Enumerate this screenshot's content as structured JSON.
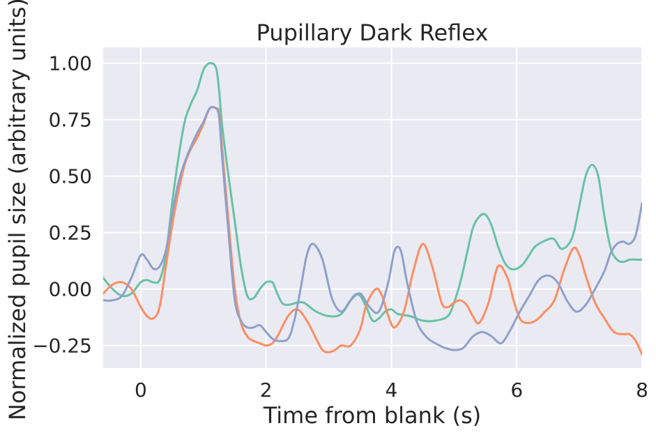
{
  "chart_data": {
    "type": "line",
    "title": "Pupillary Dark Reflex",
    "xlabel": "Time from blank (s)",
    "ylabel": "Normalized pupil size (arbitrary units)",
    "xlim": [
      -0.6,
      8.0
    ],
    "ylim": [
      -0.35,
      1.07
    ],
    "xticks": [
      0,
      2,
      4,
      6,
      8
    ],
    "xtick_labels": [
      "0",
      "2",
      "4",
      "6",
      "8"
    ],
    "yticks": [
      -0.25,
      0.0,
      0.25,
      0.5,
      0.75,
      1.0
    ],
    "ytick_labels": [
      "−0.25",
      "0.00",
      "0.25",
      "0.50",
      "0.75",
      "1.00"
    ],
    "grid": true,
    "background": "#eaeaf2",
    "series": [
      {
        "color": "#66c2a5",
        "x": [
          -0.6,
          -0.45,
          -0.3,
          -0.15,
          0.0,
          0.1,
          0.2,
          0.3,
          0.4,
          0.5,
          0.6,
          0.7,
          0.8,
          0.9,
          1.0,
          1.1,
          1.2,
          1.25,
          1.3,
          1.4,
          1.5,
          1.6,
          1.7,
          1.8,
          1.9,
          2.0,
          2.1,
          2.15,
          2.25,
          2.35,
          2.5,
          2.6,
          2.7,
          2.8,
          3.0,
          3.2,
          3.4,
          3.5,
          3.6,
          3.7,
          3.8,
          3.9,
          4.0,
          4.1,
          4.3,
          4.5,
          4.7,
          4.9,
          5.0,
          5.1,
          5.2,
          5.3,
          5.4,
          5.5,
          5.6,
          5.7,
          5.8,
          5.9,
          6.0,
          6.1,
          6.2,
          6.3,
          6.5,
          6.6,
          6.7,
          6.8,
          6.9,
          7.0,
          7.1,
          7.2,
          7.3,
          7.4,
          7.5,
          7.6,
          7.7,
          7.8,
          7.9,
          8.0
        ],
        "y": [
          0.05,
          0.0,
          -0.03,
          -0.02,
          0.03,
          0.04,
          0.03,
          0.04,
          0.15,
          0.38,
          0.58,
          0.74,
          0.82,
          0.88,
          0.97,
          1.0,
          0.98,
          0.88,
          0.72,
          0.5,
          0.3,
          0.1,
          -0.03,
          -0.04,
          0.0,
          0.03,
          0.03,
          0.0,
          -0.06,
          -0.07,
          -0.06,
          -0.06,
          -0.08,
          -0.1,
          -0.12,
          -0.11,
          -0.03,
          -0.03,
          -0.08,
          -0.14,
          -0.13,
          -0.1,
          -0.09,
          -0.11,
          -0.12,
          -0.14,
          -0.14,
          -0.12,
          -0.06,
          0.03,
          0.15,
          0.27,
          0.32,
          0.33,
          0.28,
          0.19,
          0.12,
          0.09,
          0.09,
          0.11,
          0.15,
          0.19,
          0.22,
          0.22,
          0.18,
          0.19,
          0.24,
          0.37,
          0.5,
          0.55,
          0.5,
          0.32,
          0.18,
          0.13,
          0.12,
          0.13,
          0.13,
          0.13
        ]
      },
      {
        "color": "#fc8d62",
        "x": [
          -0.6,
          -0.45,
          -0.3,
          -0.15,
          0.0,
          0.1,
          0.2,
          0.3,
          0.4,
          0.5,
          0.6,
          0.7,
          0.8,
          0.9,
          1.0,
          1.1,
          1.2,
          1.25,
          1.3,
          1.4,
          1.5,
          1.6,
          1.7,
          1.8,
          1.9,
          2.0,
          2.1,
          2.2,
          2.35,
          2.5,
          2.65,
          2.8,
          2.9,
          3.0,
          3.1,
          3.2,
          3.35,
          3.5,
          3.6,
          3.75,
          3.85,
          3.95,
          4.05,
          4.2,
          4.35,
          4.5,
          4.65,
          4.8,
          4.9,
          5.0,
          5.1,
          5.2,
          5.3,
          5.4,
          5.55,
          5.7,
          5.85,
          5.95,
          6.05,
          6.15,
          6.3,
          6.45,
          6.6,
          6.75,
          6.9,
          7.0,
          7.1,
          7.25,
          7.4,
          7.55,
          7.7,
          7.8,
          7.9,
          8.0
        ],
        "y": [
          -0.02,
          0.02,
          0.03,
          0.0,
          -0.08,
          -0.12,
          -0.13,
          -0.08,
          0.1,
          0.28,
          0.43,
          0.55,
          0.62,
          0.67,
          0.73,
          0.8,
          0.8,
          0.78,
          0.62,
          0.3,
          0.0,
          -0.15,
          -0.21,
          -0.23,
          -0.24,
          -0.25,
          -0.24,
          -0.2,
          -0.12,
          -0.09,
          -0.14,
          -0.22,
          -0.27,
          -0.28,
          -0.27,
          -0.25,
          -0.25,
          -0.18,
          -0.07,
          -0.0,
          -0.03,
          -0.12,
          -0.17,
          -0.1,
          0.08,
          0.2,
          0.1,
          -0.06,
          -0.08,
          -0.06,
          -0.05,
          -0.07,
          -0.12,
          -0.15,
          -0.06,
          0.1,
          0.05,
          -0.05,
          -0.13,
          -0.15,
          -0.14,
          -0.1,
          -0.05,
          0.08,
          0.18,
          0.15,
          0.06,
          -0.06,
          -0.13,
          -0.19,
          -0.2,
          -0.2,
          -0.23,
          -0.29
        ]
      },
      {
        "color": "#8da0cb",
        "x": [
          -0.6,
          -0.45,
          -0.3,
          -0.15,
          0.0,
          0.1,
          0.2,
          0.3,
          0.4,
          0.5,
          0.6,
          0.7,
          0.8,
          0.9,
          1.0,
          1.1,
          1.2,
          1.25,
          1.3,
          1.4,
          1.5,
          1.6,
          1.7,
          1.8,
          1.9,
          2.0,
          2.1,
          2.2,
          2.35,
          2.45,
          2.55,
          2.65,
          2.75,
          2.9,
          3.05,
          3.2,
          3.35,
          3.5,
          3.65,
          3.8,
          3.95,
          4.05,
          4.15,
          4.25,
          4.4,
          4.55,
          4.7,
          4.85,
          5.0,
          5.15,
          5.3,
          5.45,
          5.6,
          5.75,
          5.9,
          6.05,
          6.2,
          6.35,
          6.5,
          6.65,
          6.8,
          6.95,
          7.1,
          7.25,
          7.4,
          7.5,
          7.6,
          7.7,
          7.8,
          7.9,
          8.0
        ],
        "y": [
          -0.05,
          -0.05,
          -0.03,
          0.05,
          0.15,
          0.13,
          0.09,
          0.1,
          0.17,
          0.33,
          0.47,
          0.56,
          0.63,
          0.69,
          0.74,
          0.8,
          0.8,
          0.76,
          0.58,
          0.25,
          -0.05,
          -0.14,
          -0.17,
          -0.17,
          -0.16,
          -0.19,
          -0.22,
          -0.23,
          -0.22,
          -0.14,
          0.0,
          0.15,
          0.2,
          0.13,
          -0.04,
          -0.1,
          -0.05,
          -0.02,
          -0.08,
          -0.1,
          0.03,
          0.17,
          0.17,
          0.03,
          -0.14,
          -0.21,
          -0.24,
          -0.26,
          -0.27,
          -0.26,
          -0.21,
          -0.19,
          -0.21,
          -0.24,
          -0.18,
          -0.1,
          -0.03,
          0.04,
          0.06,
          0.03,
          -0.05,
          -0.1,
          -0.07,
          0.0,
          0.08,
          0.16,
          0.2,
          0.21,
          0.2,
          0.24,
          0.38
        ]
      }
    ]
  }
}
